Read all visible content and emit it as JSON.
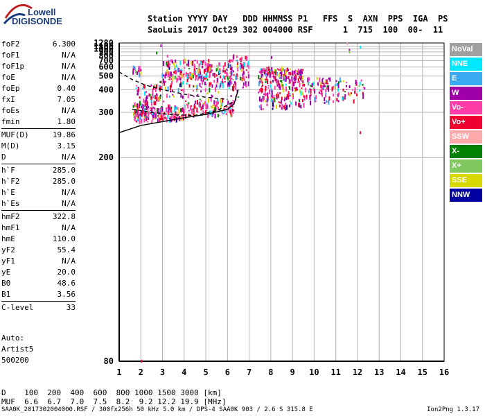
{
  "logo": {
    "line1": "Lowell",
    "line2": "DIGISONDE"
  },
  "header": {
    "line1": "Station YYYY DAY   DDD HHMMSS P1   FFS  S  AXN  PPS  IGA  PS",
    "line2": "SaoLuis 2017 Oct29 302 004000 RSF      1  715  100  00-  11"
  },
  "params": [
    {
      "key": "foF2",
      "value": "6.300"
    },
    {
      "key": "foF1",
      "value": "N/A"
    },
    {
      "key": "foF1p",
      "value": "N/A"
    },
    {
      "key": "foE",
      "value": "N/A"
    },
    {
      "key": "foEp",
      "value": "0.40"
    },
    {
      "key": "fxI",
      "value": "7.05"
    },
    {
      "key": "foEs",
      "value": "N/A"
    },
    {
      "key": "fmin",
      "value": "1.80"
    },
    {
      "key": "MUF(D)",
      "value": "19.86",
      "sep": true
    },
    {
      "key": "M(D)",
      "value": "3.15"
    },
    {
      "key": "D",
      "value": "N/A"
    },
    {
      "key": "h`F",
      "value": "285.0",
      "sep": true
    },
    {
      "key": "h`F2",
      "value": "285.0"
    },
    {
      "key": "h`E",
      "value": "N/A"
    },
    {
      "key": "h`Es",
      "value": "N/A"
    },
    {
      "key": "hmF2",
      "value": "322.8",
      "sep": true
    },
    {
      "key": "hmF1",
      "value": "N/A"
    },
    {
      "key": "hmE",
      "value": "110.0"
    },
    {
      "key": "yF2",
      "value": "55.4"
    },
    {
      "key": "yF1",
      "value": "N/A"
    },
    {
      "key": "yE",
      "value": "20.0"
    },
    {
      "key": "B0",
      "value": "48.6"
    },
    {
      "key": "B1",
      "value": "3.56"
    },
    {
      "key": "C-level",
      "value": "33",
      "sep": true
    }
  ],
  "auto": {
    "line1": "Auto:",
    "line2": "Artist5",
    "line3": "500200"
  },
  "dmuf": {
    "d_line": "D    100  200  400  600  800 1000 1500 3000 [km]",
    "muf_line": "MUF  6.6  6.7  7.0  7.5  8.2  9.2 12.2 19.9 [MHz]"
  },
  "footer": "SAA0K_2017302004000.RSF / 300fx256h 50 kHz 5.0 km / DPS-4 SAA0K 903 / 2.6 S 315.8 E",
  "version": "Ion2Png 1.3.17",
  "legend": [
    {
      "label": "NoVal",
      "color": "#a0a0a0"
    },
    {
      "label": "NNE",
      "color": "#00e8ff"
    },
    {
      "label": "E",
      "color": "#3aaaf0"
    },
    {
      "label": "W",
      "color": "#a000a8"
    },
    {
      "label": "Vo-",
      "color": "#ff3ca8"
    },
    {
      "label": "Vo+",
      "color": "#f00030"
    },
    {
      "label": "SSW",
      "color": "#ffaaaa"
    },
    {
      "label": "X-",
      "color": "#008000"
    },
    {
      "label": "X+",
      "color": "#80c860"
    },
    {
      "label": "SSE",
      "color": "#d8d800"
    },
    {
      "label": "NNW",
      "color": "#0000a0"
    }
  ],
  "chart_data": {
    "type": "scatter",
    "title": "",
    "xlabel": "",
    "ylabel": "",
    "xlim": [
      1,
      16
    ],
    "ylim": [
      80,
      1280
    ],
    "y_scale": "reciprocal",
    "grid": true,
    "x_ticks": [
      1,
      2,
      3,
      4,
      5,
      6,
      7,
      8,
      9,
      10,
      11,
      12,
      13,
      14,
      15,
      16
    ],
    "y_ticks": [
      80,
      200,
      300,
      400,
      500,
      600,
      700,
      800,
      900,
      1000,
      1100,
      1280
    ],
    "legend_placement": "right",
    "traces": [
      {
        "kind": "dashed",
        "points": [
          [
            1.0,
            540
          ],
          [
            1.6,
            470
          ],
          [
            2.2,
            430
          ],
          [
            3.0,
            400
          ],
          [
            4.0,
            375
          ],
          [
            5.0,
            360
          ],
          [
            6.0,
            350
          ]
        ]
      },
      {
        "kind": "dashed",
        "points": [
          [
            1.6,
            310
          ],
          [
            2.5,
            300
          ],
          [
            3.5,
            292
          ],
          [
            4.5,
            290
          ],
          [
            5.5,
            305
          ],
          [
            6.3,
            340
          ]
        ]
      },
      {
        "kind": "solid",
        "points": [
          [
            1.0,
            245
          ],
          [
            2.0,
            262
          ],
          [
            3.0,
            272
          ],
          [
            4.0,
            283
          ],
          [
            5.0,
            293
          ],
          [
            6.0,
            310
          ],
          [
            6.3,
            330
          ],
          [
            6.5,
            400
          ]
        ]
      }
    ],
    "clusters": [
      {
        "x": [
          1.6,
          2.5
        ],
        "y": [
          270,
          330
        ],
        "n": 90
      },
      {
        "x": [
          2.5,
          4.0
        ],
        "y": [
          275,
          320
        ],
        "n": 110
      },
      {
        "x": [
          4.0,
          6.3
        ],
        "y": [
          285,
          340
        ],
        "n": 110
      },
      {
        "x": [
          1.7,
          2.9
        ],
        "y": [
          330,
          430
        ],
        "n": 60
      },
      {
        "x": [
          2.8,
          6.5
        ],
        "y": [
          340,
          560
        ],
        "n": 170
      },
      {
        "x": [
          3.0,
          5.2
        ],
        "y": [
          520,
          700
        ],
        "n": 70
      },
      {
        "x": [
          5.0,
          7.0
        ],
        "y": [
          400,
          650
        ],
        "n": 80
      },
      {
        "x": [
          6.0,
          7.0
        ],
        "y": [
          600,
          800
        ],
        "n": 25
      },
      {
        "x": [
          7.4,
          9.5
        ],
        "y": [
          310,
          580
        ],
        "n": 280
      },
      {
        "x": [
          9.5,
          10.7
        ],
        "y": [
          330,
          480
        ],
        "n": 70
      },
      {
        "x": [
          10.8,
          12.3
        ],
        "y": [
          340,
          470
        ],
        "n": 50
      },
      {
        "x": [
          3.5,
          5.0
        ],
        "y": [
          460,
          520
        ],
        "n": 30
      },
      {
        "x": [
          1.6,
          2.0
        ],
        "y": [
          500,
          620
        ],
        "n": 15
      }
    ],
    "outliers": [
      [
        2.9,
        1130
      ],
      [
        12.1,
        1070
      ],
      [
        11.5,
        1240
      ],
      [
        11.6,
        950
      ],
      [
        11.6,
        900
      ],
      [
        12.1,
        245
      ],
      [
        2.7,
        870
      ],
      [
        3.2,
        790
      ],
      [
        8.0,
        760
      ],
      [
        2.0,
        80
      ]
    ]
  }
}
